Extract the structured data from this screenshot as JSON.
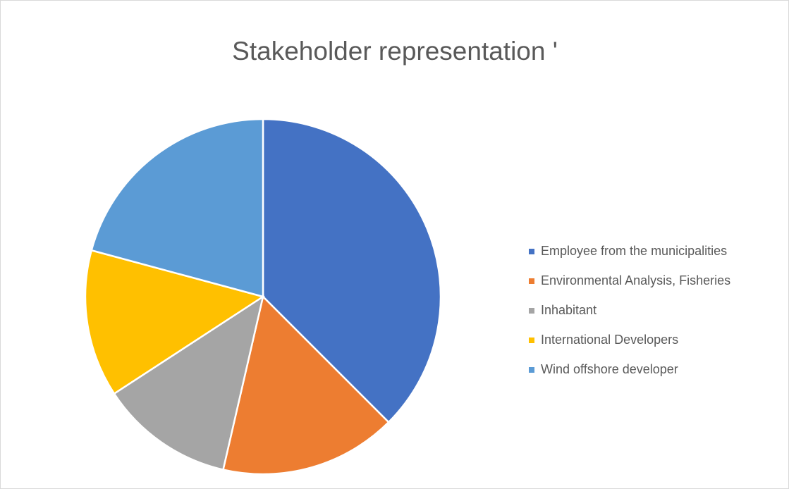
{
  "chart_data": {
    "type": "pie",
    "title": "Stakeholder representation '",
    "categories": [
      "Employee from the municipalities",
      "Environmental Analysis, Fisheries",
      "Inhabitant",
      "International Developers",
      "Wind offshore developer"
    ],
    "values": [
      37.5,
      16.1,
      12.2,
      13.4,
      20.8
    ],
    "colors": [
      "#4472c4",
      "#ed7d31",
      "#a5a5a5",
      "#ffc000",
      "#5b9bd5"
    ],
    "legend": "right"
  }
}
